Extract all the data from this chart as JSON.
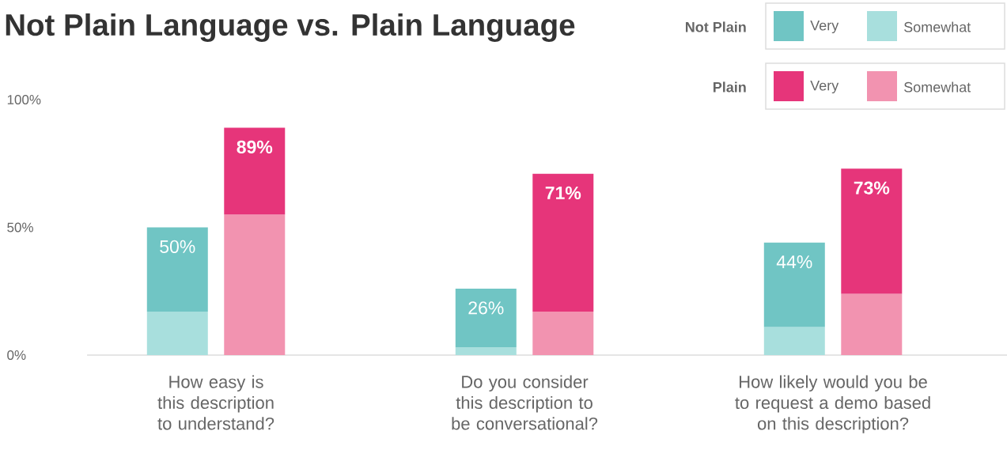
{
  "chart_data": {
    "type": "bar",
    "title": "Not Plain Language vs. Plain Language",
    "categories": [
      null,
      "How easy is this description to understand?",
      null,
      null,
      null,
      "Do you consider this description to be conversational?",
      null,
      null,
      null,
      "How likely would you be to request a demo based on this description?",
      null,
      null
    ],
    "stacked": true,
    "series": [
      {
        "name": "Somewhat",
        "color": "#a8dfdd",
        "values": [
          null,
          17,
          null,
          null,
          null,
          3,
          null,
          null,
          null,
          11,
          null,
          null
        ]
      },
      {
        "name": "Very",
        "color": "#70c5c4",
        "values": [
          null,
          33,
          null,
          null,
          null,
          23,
          null,
          null,
          null,
          33,
          null,
          null
        ]
      },
      {
        "name": "Somewhat",
        "color": "#f293b0",
        "values": [
          null,
          null,
          55,
          null,
          null,
          null,
          17,
          null,
          null,
          null,
          24,
          null
        ]
      },
      {
        "name": "Very",
        "color": "#e6357a",
        "values": [
          null,
          null,
          34,
          null,
          null,
          null,
          54,
          null,
          null,
          null,
          49,
          null
        ]
      }
    ],
    "totals": [
      null,
      "50%",
      "89%",
      null,
      null,
      "26%",
      "71%",
      null,
      null,
      "44%",
      "73%",
      null
    ],
    "annotations": [
      "Not Plain",
      "Plain"
    ],
    "ylim": [
      0,
      100
    ],
    "yticks": [
      {
        "value": 0,
        "label": "0%"
      },
      {
        "value": 50,
        "label": "50%"
      },
      {
        "value": 100,
        "label": "100%"
      }
    ],
    "legend": "top right"
  }
}
